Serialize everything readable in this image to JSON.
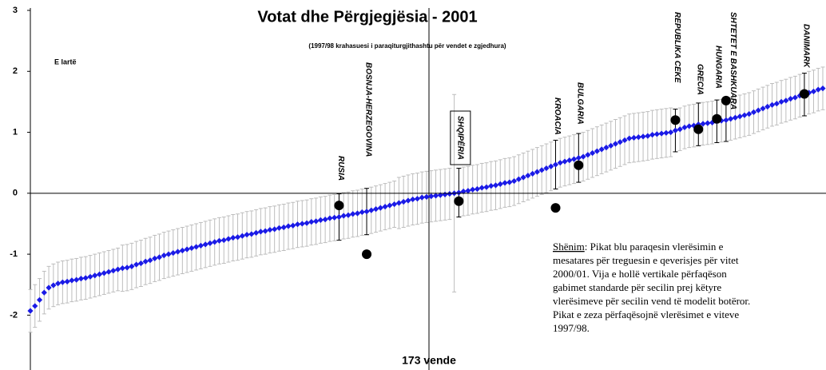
{
  "chart_data": {
    "type": "scatter",
    "title": "Votat dhe Përgjegjësia - 2001",
    "subtitle": "(1997/98 krahasuesi i paraqiturgjithashtu për vendet e zgjedhura)",
    "annotation": "E lartë",
    "x_label": "173 vende",
    "note_label": "Shënim",
    "note_lines": [
      ": Pikat blu paraqesin vlerësimin e",
      "mesatares për treguesin e qeverisjes për vitet",
      "2000/01. Vija e hollë vertikale përfaqëson",
      "gabimet standarde për secilin prej këtyre",
      "vlerësimeve për secilin vend të modelit botëror.",
      "Pikat e zeza përfaqësojnë vlerësimet e viteve",
      "1997/98."
    ],
    "ylim": [
      -2.9,
      3
    ],
    "yticks": [
      -2,
      -1,
      0,
      1,
      2,
      3
    ],
    "color": "#1a1ae6",
    "error_color": "#bdbdbd",
    "values": [
      -1.93,
      -1.85,
      -1.75,
      -1.63,
      -1.55,
      -1.51,
      -1.48,
      -1.46,
      -1.45,
      -1.43,
      -1.42,
      -1.4,
      -1.39,
      -1.37,
      -1.35,
      -1.33,
      -1.31,
      -1.29,
      -1.27,
      -1.25,
      -1.23,
      -1.22,
      -1.2,
      -1.17,
      -1.15,
      -1.12,
      -1.1,
      -1.07,
      -1.05,
      -1.02,
      -1.0,
      -0.98,
      -0.96,
      -0.94,
      -0.92,
      -0.9,
      -0.88,
      -0.86,
      -0.84,
      -0.82,
      -0.8,
      -0.78,
      -0.77,
      -0.75,
      -0.73,
      -0.72,
      -0.7,
      -0.68,
      -0.67,
      -0.65,
      -0.63,
      -0.62,
      -0.6,
      -0.59,
      -0.57,
      -0.56,
      -0.54,
      -0.53,
      -0.51,
      -0.5,
      -0.49,
      -0.47,
      -0.46,
      -0.44,
      -0.43,
      -0.41,
      -0.4,
      -0.39,
      -0.37,
      -0.36,
      -0.34,
      -0.33,
      -0.31,
      -0.3,
      -0.28,
      -0.26,
      -0.24,
      -0.22,
      -0.2,
      -0.18,
      -0.16,
      -0.14,
      -0.12,
      -0.1,
      -0.09,
      -0.07,
      -0.06,
      -0.05,
      -0.04,
      -0.03,
      -0.02,
      -0.01,
      0.0,
      0.01,
      0.03,
      0.04,
      0.06,
      0.07,
      0.09,
      0.1,
      0.12,
      0.13,
      0.15,
      0.17,
      0.18,
      0.2,
      0.23,
      0.26,
      0.29,
      0.32,
      0.35,
      0.38,
      0.41,
      0.44,
      0.47,
      0.5,
      0.52,
      0.54,
      0.56,
      0.58,
      0.6,
      0.63,
      0.66,
      0.69,
      0.72,
      0.75,
      0.78,
      0.81,
      0.84,
      0.87,
      0.9,
      0.91,
      0.92,
      0.93,
      0.94,
      0.96,
      0.97,
      0.98,
      0.99,
      1.0,
      1.03,
      1.05,
      1.08,
      1.1,
      1.11,
      1.13,
      1.14,
      1.15,
      1.16,
      1.18,
      1.19,
      1.2,
      1.22,
      1.24,
      1.26,
      1.28,
      1.3,
      1.33,
      1.36,
      1.39,
      1.42,
      1.45,
      1.47,
      1.5,
      1.52,
      1.55,
      1.57,
      1.6,
      1.62,
      1.65,
      1.67,
      1.7,
      1.72
    ],
    "errors": [
      0.35,
      0.35,
      0.35,
      0.35,
      0.35,
      0.35,
      0.35,
      0.35,
      0.35,
      0.35,
      0.35,
      0.35,
      0.35,
      0.35,
      0.35,
      0.35,
      0.35,
      0.35,
      0.35,
      0.35,
      0.38,
      0.38,
      0.38,
      0.38,
      0.38,
      0.38,
      0.38,
      0.38,
      0.38,
      0.38,
      0.38,
      0.38,
      0.38,
      0.38,
      0.38,
      0.38,
      0.38,
      0.38,
      0.38,
      0.38,
      0.38,
      0.38,
      0.38,
      0.38,
      0.38,
      0.38,
      0.38,
      0.38,
      0.38,
      0.38,
      0.38,
      0.38,
      0.38,
      0.38,
      0.38,
      0.38,
      0.38,
      0.38,
      0.38,
      0.38,
      0.38,
      0.38,
      0.38,
      0.38,
      0.38,
      0.38,
      0.38,
      0.38,
      0.38,
      0.38,
      0.38,
      0.38,
      0.38,
      0.38,
      0.38,
      0.38,
      0.38,
      0.38,
      0.38,
      0.38,
      0.42,
      0.42,
      0.42,
      0.42,
      0.42,
      0.42,
      0.42,
      0.42,
      0.42,
      0.42,
      0.42,
      0.42,
      1.62,
      0.4,
      0.4,
      0.4,
      0.4,
      0.4,
      0.4,
      0.4,
      0.4,
      0.4,
      0.4,
      0.4,
      0.4,
      0.4,
      0.4,
      0.4,
      0.4,
      0.4,
      0.4,
      0.4,
      0.4,
      0.4,
      0.4,
      0.4,
      0.4,
      0.4,
      0.4,
      0.4,
      0.4,
      0.4,
      0.4,
      0.4,
      0.4,
      0.4,
      0.4,
      0.4,
      0.4,
      0.4,
      0.4,
      0.4,
      0.4,
      0.4,
      0.4,
      0.4,
      0.4,
      0.4,
      0.4,
      0.4,
      0.35,
      0.35,
      0.35,
      0.35,
      0.35,
      0.35,
      0.35,
      0.35,
      0.35,
      0.35,
      0.35,
      0.35,
      0.35,
      0.35,
      0.35,
      0.35,
      0.35,
      0.35,
      0.35,
      0.35,
      0.35,
      0.35,
      0.35,
      0.35,
      0.35,
      0.35,
      0.35,
      0.35,
      0.35,
      0.35,
      0.35,
      0.35,
      0.35
    ],
    "highlighted": [
      {
        "name": "RUSIA",
        "rank": 68,
        "estimate_1997": -0.2
      },
      {
        "name": "BOSNJA-HERZEGOVINA",
        "rank": 74,
        "estimate_1997": -1.0
      },
      {
        "name": "SHQIPËRIA",
        "rank": 94,
        "estimate_1997": -0.13
      },
      {
        "name": "KROACIA",
        "rank": 115,
        "estimate_1997": -0.24
      },
      {
        "name": "BULGARIA",
        "rank": 120,
        "estimate_1997": 0.46
      },
      {
        "name": "REPUBLIKA CEKE",
        "rank": 141,
        "estimate_1997": 1.2
      },
      {
        "name": "GRECIA",
        "rank": 146,
        "estimate_1997": 1.05
      },
      {
        "name": "HUNGARIA",
        "rank": 150,
        "estimate_1997": 1.22
      },
      {
        "name": "SHTETET E BASHKUARA",
        "rank": 152,
        "estimate_1997": 1.52
      },
      {
        "name": "DANIMARK",
        "rank": 169,
        "estimate_1997": 1.63
      }
    ],
    "dot_color": "#000000"
  }
}
